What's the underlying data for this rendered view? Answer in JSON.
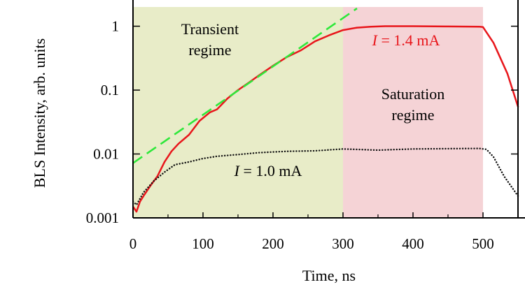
{
  "chart_data": {
    "type": "line",
    "xlabel": "Time, ns",
    "ylabel": "BLS Intensity, arb. units",
    "xlim": [
      0,
      550
    ],
    "ylim": [
      0.001,
      2
    ],
    "yscale": "log",
    "x_ticks": [
      0,
      100,
      200,
      300,
      400,
      500
    ],
    "x_tick_labels": [
      "0",
      "100",
      "200",
      "300",
      "400",
      "500"
    ],
    "y_ticks": [
      0.001,
      0.01,
      0.1,
      1
    ],
    "y_tick_labels": [
      "0.001",
      "0.01",
      "0.1",
      "1"
    ],
    "regions": [
      {
        "x0": 0,
        "x1": 300,
        "color": "#e8ecc8",
        "label_lines": [
          "Transient",
          "regime"
        ],
        "label_x": 110,
        "label_y": 0.75
      },
      {
        "x0": 300,
        "x1": 500,
        "color": "#f5d3d6",
        "label_lines": [
          "Saturation",
          "regime"
        ],
        "label_x": 400,
        "label_y": 0.072
      }
    ],
    "series": [
      {
        "style": "solid",
        "color": "#e8161b",
        "points": [
          [
            0,
            0.0015
          ],
          [
            5,
            0.00125
          ],
          [
            10,
            0.0018
          ],
          [
            15,
            0.0022
          ],
          [
            25,
            0.0032
          ],
          [
            35,
            0.0045
          ],
          [
            45,
            0.0075
          ],
          [
            55,
            0.011
          ],
          [
            65,
            0.0145
          ],
          [
            80,
            0.02
          ],
          [
            95,
            0.033
          ],
          [
            110,
            0.045
          ],
          [
            120,
            0.05
          ],
          [
            135,
            0.074
          ],
          [
            150,
            0.1
          ],
          [
            165,
            0.13
          ],
          [
            180,
            0.17
          ],
          [
            200,
            0.24
          ],
          [
            220,
            0.33
          ],
          [
            240,
            0.42
          ],
          [
            260,
            0.58
          ],
          [
            280,
            0.72
          ],
          [
            300,
            0.87
          ],
          [
            320,
            0.95
          ],
          [
            340,
            0.98
          ],
          [
            360,
            1.0
          ],
          [
            400,
            1.0
          ],
          [
            450,
            0.99
          ],
          [
            495,
            0.98
          ],
          [
            500,
            0.97
          ],
          [
            515,
            0.55
          ],
          [
            535,
            0.18
          ],
          [
            550,
            0.055
          ]
        ],
        "label": "I = 1.4 mA",
        "label_x": 390,
        "label_y": 0.5
      },
      {
        "style": "dotted",
        "color": "#111111",
        "points": [
          [
            0,
            0.0018
          ],
          [
            5,
            0.0016
          ],
          [
            15,
            0.0025
          ],
          [
            30,
            0.0038
          ],
          [
            45,
            0.0052
          ],
          [
            60,
            0.0068
          ],
          [
            80,
            0.0075
          ],
          [
            100,
            0.0085
          ],
          [
            120,
            0.0092
          ],
          [
            150,
            0.0098
          ],
          [
            180,
            0.0105
          ],
          [
            220,
            0.011
          ],
          [
            260,
            0.0112
          ],
          [
            300,
            0.012
          ],
          [
            350,
            0.0115
          ],
          [
            400,
            0.012
          ],
          [
            450,
            0.0121
          ],
          [
            495,
            0.0122
          ],
          [
            505,
            0.0118
          ],
          [
            515,
            0.009
          ],
          [
            530,
            0.0045
          ],
          [
            550,
            0.0022
          ]
        ],
        "label": "I = 1.0 mA",
        "label_x": 193,
        "label_y": 0.0045
      },
      {
        "style": "dashed",
        "color": "#2ee83a",
        "points": [
          [
            0,
            0.0072
          ],
          [
            320,
            1.9
          ]
        ]
      }
    ]
  }
}
